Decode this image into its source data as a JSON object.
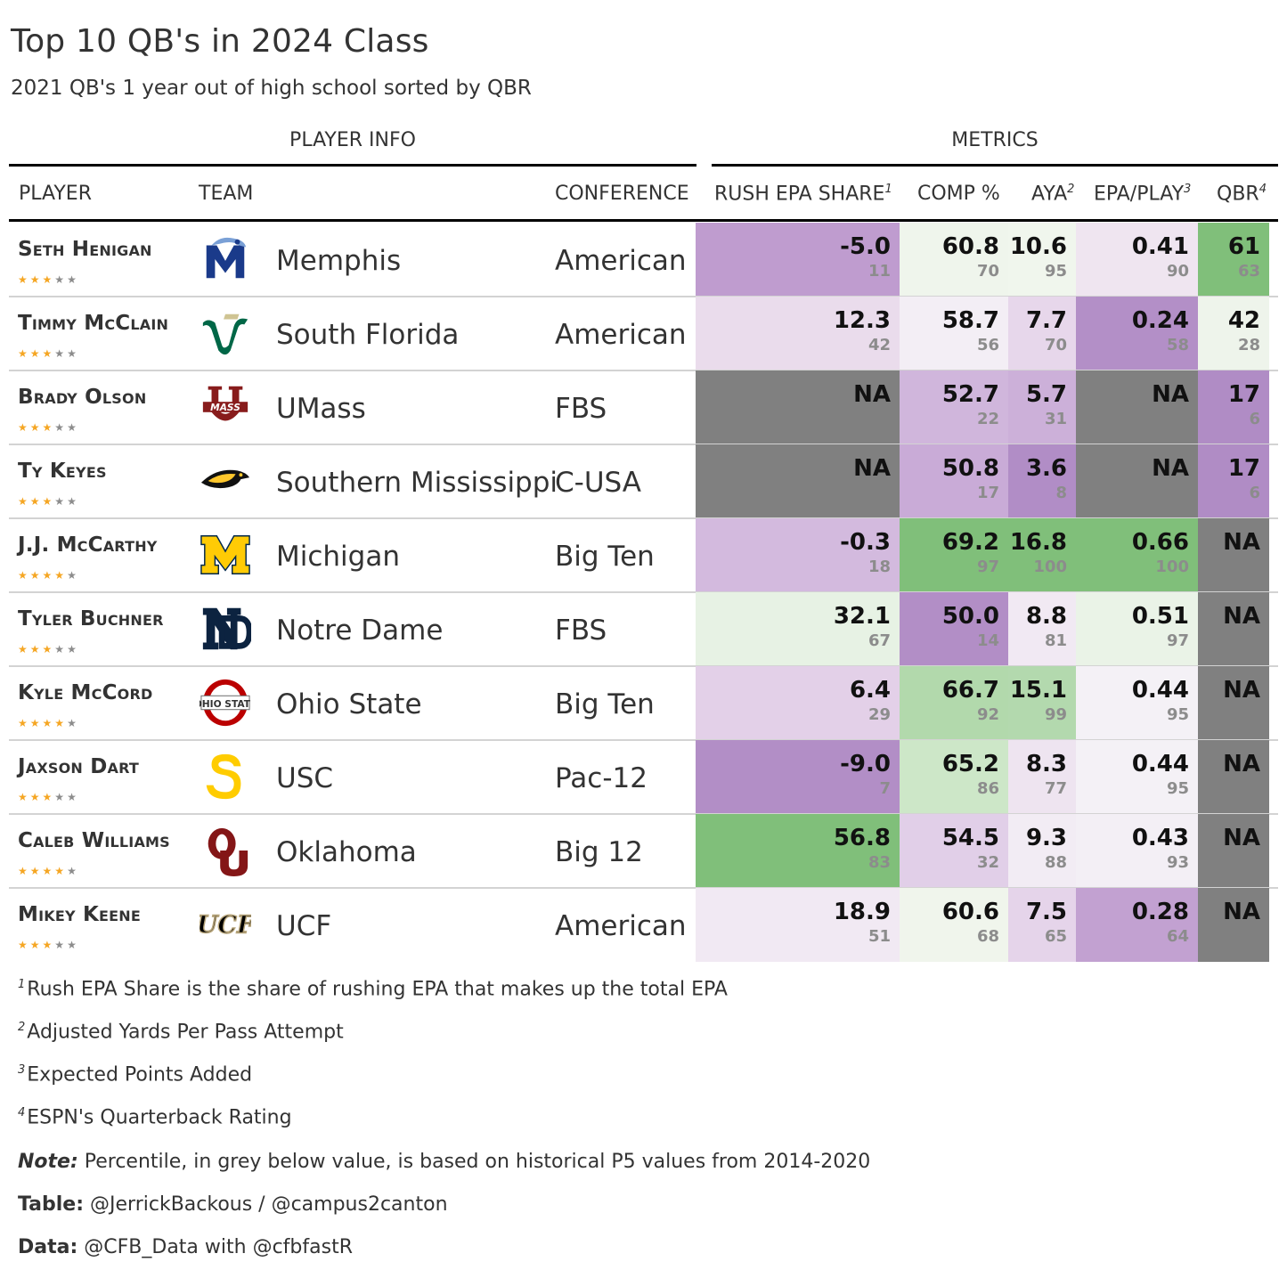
{
  "header": {
    "title": "Top 10 QB's in 2024 Class",
    "subtitle": "2021 QB's 1 year out of high school sorted by QBR"
  },
  "spanners": {
    "player_info": "PLAYER INFO",
    "metrics": "METRICS"
  },
  "colors": {
    "green_dark": "#7ebe78",
    "purple_dark": "#ad88c4",
    "na": "#808080",
    "star_gold": "#f5a623",
    "star_grey": "#8c8c8c"
  },
  "chart_data": {
    "type": "table",
    "title": "Top 10 QB's in 2024 Class",
    "subtitle": "2021 QB's 1 year out of high school sorted by QBR",
    "columns": [
      {
        "key": "player",
        "label": "PLAYER",
        "sup": ""
      },
      {
        "key": "team",
        "label": "TEAM",
        "sup": ""
      },
      {
        "key": "conference",
        "label": "CONFERENCE",
        "sup": ""
      },
      {
        "key": "rush_epa_share",
        "label": "RUSH EPA SHARE",
        "sup": "1"
      },
      {
        "key": "comp_pct",
        "label": "COMP %",
        "sup": ""
      },
      {
        "key": "aya",
        "label": "AYA",
        "sup": "2"
      },
      {
        "key": "epa_play",
        "label": "EPA/PLAY",
        "sup": "3"
      },
      {
        "key": "qbr",
        "label": "QBR",
        "sup": "4"
      }
    ],
    "rows": [
      {
        "player": "Seth Henigan",
        "stars": 3,
        "team": "Memphis",
        "logo": "memphis-logo",
        "conference": "American",
        "rush_epa_share": {
          "value": "-5.0",
          "pct": "11",
          "color": "#bf9ccf"
        },
        "comp_pct": {
          "value": "60.8",
          "pct": "70",
          "color": "#eff5ec"
        },
        "aya": {
          "value": "10.6",
          "pct": "95",
          "color": "#f0f6ed"
        },
        "epa_play": {
          "value": "0.41",
          "pct": "90",
          "color": "#efe5f0"
        },
        "qbr": {
          "value": "61",
          "pct": "63",
          "color": "#80bf7a"
        }
      },
      {
        "player": "Timmy McClain",
        "stars": 3,
        "team": "South Florida",
        "logo": "usf-logo",
        "conference": "American",
        "rush_epa_share": {
          "value": "12.3",
          "pct": "42",
          "color": "#eadcec"
        },
        "comp_pct": {
          "value": "58.7",
          "pct": "56",
          "color": "#f3eef5"
        },
        "aya": {
          "value": "7.7",
          "pct": "70",
          "color": "#e7d7eb"
        },
        "epa_play": {
          "value": "0.24",
          "pct": "58",
          "color": "#b38fc7"
        },
        "qbr": {
          "value": "42",
          "pct": "28",
          "color": "#eef4eb"
        }
      },
      {
        "player": "Brady Olson",
        "stars": 3,
        "team": "UMass",
        "logo": "umass-logo",
        "conference": "FBS",
        "rush_epa_share": {
          "value": "NA",
          "pct": "",
          "color": "#808080"
        },
        "comp_pct": {
          "value": "52.7",
          "pct": "22",
          "color": "#d0b6dc"
        },
        "aya": {
          "value": "5.7",
          "pct": "31",
          "color": "#ccb0d9"
        },
        "epa_play": {
          "value": "NA",
          "pct": "",
          "color": "#808080"
        },
        "qbr": {
          "value": "17",
          "pct": "6",
          "color": "#b08cc5"
        }
      },
      {
        "player": "Ty Keyes",
        "stars": 3,
        "team": "Southern Mississippi",
        "logo": "usm-logo",
        "conference": "C-USA",
        "rush_epa_share": {
          "value": "NA",
          "pct": "",
          "color": "#808080"
        },
        "comp_pct": {
          "value": "50.8",
          "pct": "17",
          "color": "#c9abd7"
        },
        "aya": {
          "value": "3.6",
          "pct": "8",
          "color": "#b18dc6"
        },
        "epa_play": {
          "value": "NA",
          "pct": "",
          "color": "#808080"
        },
        "qbr": {
          "value": "17",
          "pct": "6",
          "color": "#b08cc5"
        }
      },
      {
        "player": "J.J. McCarthy",
        "stars": 4,
        "team": "Michigan",
        "logo": "michigan-logo",
        "conference": "Big Ten",
        "rush_epa_share": {
          "value": "-0.3",
          "pct": "18",
          "color": "#d3bade"
        },
        "comp_pct": {
          "value": "69.2",
          "pct": "97",
          "color": "#80bf7a"
        },
        "aya": {
          "value": "16.8",
          "pct": "100",
          "color": "#80bf7a"
        },
        "epa_play": {
          "value": "0.66",
          "pct": "100",
          "color": "#80bf7a"
        },
        "qbr": {
          "value": "NA",
          "pct": "",
          "color": "#808080"
        }
      },
      {
        "player": "Tyler Buchner",
        "stars": 3,
        "team": "Notre Dame",
        "logo": "notre-dame-logo",
        "conference": "FBS",
        "rush_epa_share": {
          "value": "32.1",
          "pct": "67",
          "color": "#e7f2e4"
        },
        "comp_pct": {
          "value": "50.0",
          "pct": "14",
          "color": "#b28ec6"
        },
        "aya": {
          "value": "8.8",
          "pct": "81",
          "color": "#f1e9f3"
        },
        "epa_play": {
          "value": "0.51",
          "pct": "97",
          "color": "#eaf3e7"
        },
        "qbr": {
          "value": "NA",
          "pct": "",
          "color": "#808080"
        }
      },
      {
        "player": "Kyle McCord",
        "stars": 4,
        "team": "Ohio State",
        "logo": "ohio-state-logo",
        "conference": "Big Ten",
        "rush_epa_share": {
          "value": "6.4",
          "pct": "29",
          "color": "#e3d0e8"
        },
        "comp_pct": {
          "value": "66.7",
          "pct": "92",
          "color": "#b2d9ac"
        },
        "aya": {
          "value": "15.1",
          "pct": "99",
          "color": "#b3d9ae"
        },
        "epa_play": {
          "value": "0.44",
          "pct": "95",
          "color": "#f4f1f6"
        },
        "qbr": {
          "value": "NA",
          "pct": "",
          "color": "#808080"
        }
      },
      {
        "player": "Jaxson Dart",
        "stars": 3,
        "team": "USC",
        "logo": "usc-logo",
        "conference": "Pac-12",
        "rush_epa_share": {
          "value": "-9.0",
          "pct": "7",
          "color": "#b28ec6"
        },
        "comp_pct": {
          "value": "65.2",
          "pct": "86",
          "color": "#cde7c8"
        },
        "aya": {
          "value": "8.3",
          "pct": "77",
          "color": "#eee4f0"
        },
        "epa_play": {
          "value": "0.44",
          "pct": "95",
          "color": "#f4f1f6"
        },
        "qbr": {
          "value": "NA",
          "pct": "",
          "color": "#808080"
        }
      },
      {
        "player": "Caleb Williams",
        "stars": 4,
        "team": "Oklahoma",
        "logo": "oklahoma-logo",
        "conference": "Big 12",
        "rush_epa_share": {
          "value": "56.8",
          "pct": "83",
          "color": "#80bf7a"
        },
        "comp_pct": {
          "value": "54.5",
          "pct": "32",
          "color": "#e1cfe8"
        },
        "aya": {
          "value": "9.3",
          "pct": "88",
          "color": "#f2ecf4"
        },
        "epa_play": {
          "value": "0.43",
          "pct": "93",
          "color": "#f3eff5"
        },
        "qbr": {
          "value": "NA",
          "pct": "",
          "color": "#808080"
        }
      },
      {
        "player": "Mikey Keene",
        "stars": 3,
        "team": "UCF",
        "logo": "ucf-logo",
        "conference": "American",
        "rush_epa_share": {
          "value": "18.9",
          "pct": "51",
          "color": "#f1e9f3"
        },
        "comp_pct": {
          "value": "60.6",
          "pct": "68",
          "color": "#f0f5ec"
        },
        "aya": {
          "value": "7.5",
          "pct": "65",
          "color": "#e5d4ea"
        },
        "epa_play": {
          "value": "0.28",
          "pct": "64",
          "color": "#c2a1d1"
        },
        "qbr": {
          "value": "NA",
          "pct": "",
          "color": "#808080"
        }
      }
    ]
  },
  "footnotes": [
    {
      "mark": "1",
      "text": "Rush EPA Share is the share of rushing EPA that makes up the total EPA"
    },
    {
      "mark": "2",
      "text": "Adjusted Yards Per Pass Attempt"
    },
    {
      "mark": "3",
      "text": "Expected Points Added"
    },
    {
      "mark": "4",
      "text": "ESPN's Quarterback Rating"
    }
  ],
  "source_notes": [
    {
      "key": "Note:",
      "italic": true,
      "text": " Percentile, in grey below value, is based on historical P5 values from 2014-2020"
    },
    {
      "key": "Table:",
      "italic": false,
      "text": " @JerrickBackous / @campus2canton"
    },
    {
      "key": "Data:",
      "italic": false,
      "text": " @CFB_Data with @cfbfastR"
    }
  ]
}
